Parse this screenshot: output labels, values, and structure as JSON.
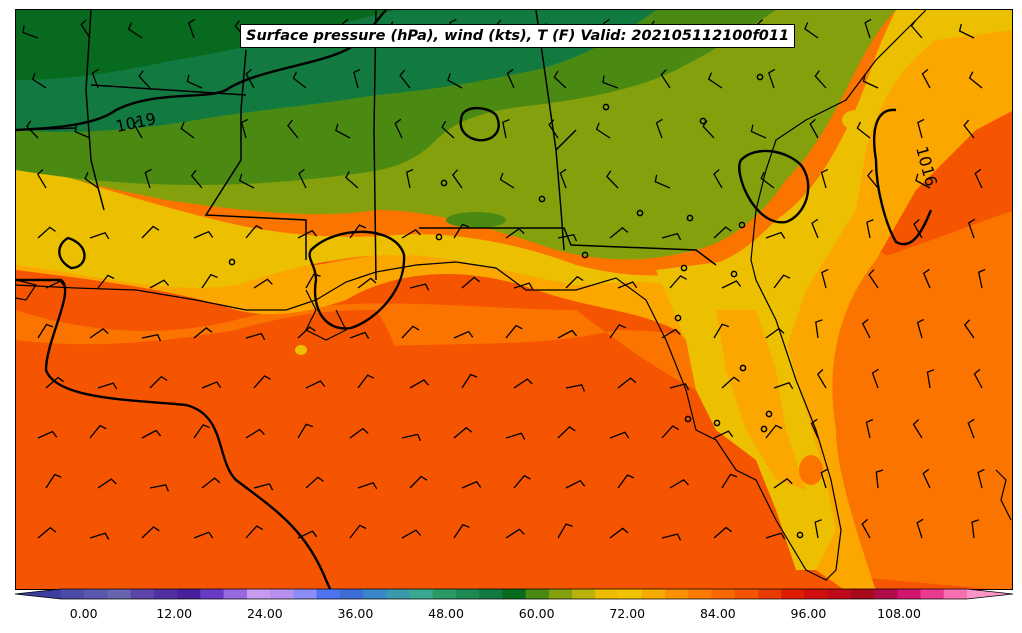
{
  "title": "Surface pressure (hPa), wind (kts), T (F) Valid: 202105112100f011",
  "isobar_labels": [
    "1019",
    "1016"
  ],
  "colorbar": {
    "ticks": [
      "0.00",
      "12.00",
      "24.00",
      "36.00",
      "48.00",
      "60.00",
      "72.00",
      "84.00",
      "96.00",
      "108.00"
    ],
    "min": -3,
    "max": 117,
    "step": 3,
    "extend": "both",
    "colors": [
      "#3d3ea0",
      "#4c4ba6",
      "#5a58ac",
      "#6864b0",
      "#5e44a8",
      "#5230a2",
      "#48209c",
      "#6a3ac4",
      "#9868e0",
      "#c89af0",
      "#b890f0",
      "#8c8cf4",
      "#4e72f0",
      "#3c6cd4",
      "#3a86c8",
      "#3a9aac",
      "#3aa890",
      "#2a9a66",
      "#1c8a52",
      "#127a40",
      "#086a1e",
      "#4a8a12",
      "#84a00c",
      "#b8b20a",
      "#f0bc00",
      "#f2c400",
      "#f7aa00",
      "#fb9000",
      "#fd7c00",
      "#fb6800",
      "#f45400",
      "#e83c00",
      "#e01c00",
      "#d00e0e",
      "#c00a1a",
      "#a80a1c",
      "#b00a48",
      "#d01470",
      "#e83a8e",
      "#f870b0",
      "#fc94c8"
    ]
  },
  "colors": {
    "temp_56_60": "#127a40",
    "temp_60_64": "#4a8a12",
    "temp_64_68": "#84a00c",
    "temp_68_72": "#ecc000",
    "temp_72_76": "#fca600",
    "temp_76_80": "#fb7400",
    "temp_80_84": "#f55500",
    "temp_84_88": "#e63a00",
    "isobar": "#000000",
    "coastline": "#000000"
  }
}
